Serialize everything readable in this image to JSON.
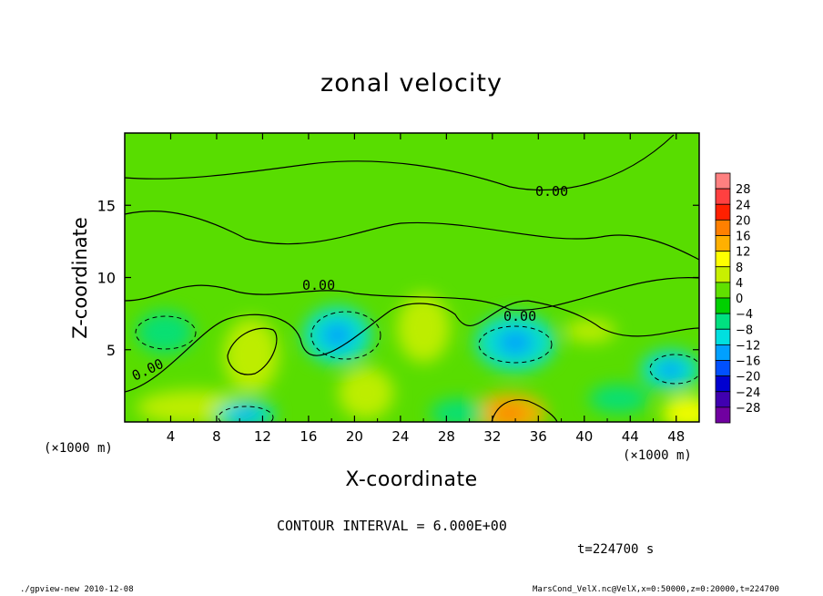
{
  "chart_data": {
    "type": "heatmap",
    "title": "zonal velocity",
    "xlabel": "X-coordinate",
    "ylabel": "Z-coordinate",
    "x_unit_label": "(×1000 m)",
    "xlim": [
      0,
      50
    ],
    "ylim": [
      0,
      20
    ],
    "x_ticks": [
      4,
      8,
      12,
      16,
      20,
      24,
      28,
      32,
      36,
      40,
      44,
      48
    ],
    "y_ticks": [
      5,
      10,
      15
    ],
    "colorbar_ticks": [
      28,
      24,
      20,
      16,
      12,
      8,
      4,
      0,
      -4,
      -8,
      -12,
      -16,
      -20,
      -24,
      -28
    ],
    "colorbar_colors": [
      "#ff8080",
      "#ff4040",
      "#ff2000",
      "#ff8000",
      "#ffb000",
      "#ffff00",
      "#c8f000",
      "#60e000",
      "#00d000",
      "#00e080",
      "#00e0e0",
      "#00a0ff",
      "#0050ff",
      "#0000d0",
      "#4000b0",
      "#7000a0"
    ],
    "contour_labels": [
      "0.00",
      "0.00",
      "0.00",
      "0.00"
    ],
    "contour_interval": "CONTOUR INTERVAL = 6.000E+00",
    "time": "t=224700 s",
    "field_blobs": [
      {
        "x": 6,
        "z": 1.0,
        "rx": 5,
        "rz": 1.2,
        "value": 7
      },
      {
        "x": 11,
        "z": 4.6,
        "rx": 2.4,
        "rz": 2.6,
        "value": 6
      },
      {
        "x": 21,
        "z": 2.0,
        "rx": 2.4,
        "rz": 1.8,
        "value": 5
      },
      {
        "x": 26,
        "z": 6.5,
        "rx": 2.3,
        "rz": 2.4,
        "value": 6
      },
      {
        "x": 33.5,
        "z": 0.6,
        "rx": 3.2,
        "rz": 1.4,
        "value": 12
      },
      {
        "x": 49,
        "z": 0.6,
        "rx": 2.2,
        "rz": 1.2,
        "value": 8
      },
      {
        "x": 40.5,
        "z": 6.3,
        "rx": 2.2,
        "rz": 0.8,
        "value": 5
      },
      {
        "x": 3.5,
        "z": 6.2,
        "rx": 2.5,
        "rz": 1.5,
        "value": -8
      },
      {
        "x": 18.5,
        "z": 6.0,
        "rx": 3.0,
        "rz": 2.0,
        "value": -9
      },
      {
        "x": 34,
        "z": 5.5,
        "rx": 3.5,
        "rz": 2.0,
        "value": -10
      },
      {
        "x": 47.5,
        "z": 3.6,
        "rx": 2.6,
        "rz": 1.4,
        "value": -9
      },
      {
        "x": 10.5,
        "z": 0.5,
        "rx": 2.6,
        "rz": 1.0,
        "value": -9
      },
      {
        "x": 29,
        "z": 0.6,
        "rx": 2.4,
        "rz": 1.0,
        "value": -7
      },
      {
        "x": 43,
        "z": 1.6,
        "rx": 2.6,
        "rz": 1.0,
        "value": -6
      }
    ]
  },
  "footer": {
    "left": "./gpview-new  2010-12-08",
    "right": "MarsCond_VelX.nc@VelX,x=0:50000,z=0:20000,t=224700"
  }
}
